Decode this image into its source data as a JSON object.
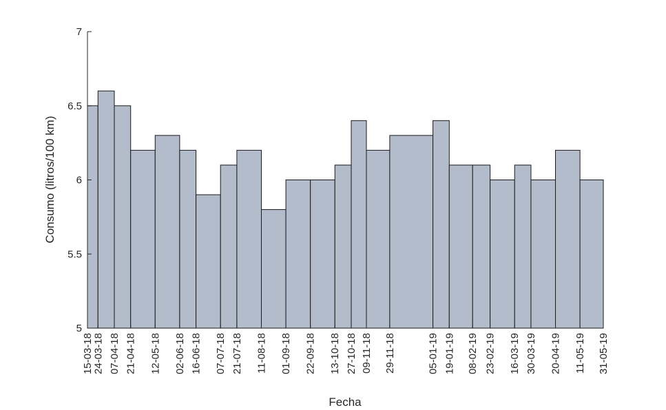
{
  "chart_data": {
    "type": "histogram",
    "xlabel": "Fecha",
    "ylabel": "Consumo (litros/100 km)",
    "bins": [
      "15-03-18",
      "24-03-18",
      "07-04-18",
      "21-04-18",
      "12-05-18",
      "02-06-18",
      "16-06-18",
      "07-07-18",
      "21-07-18",
      "11-08-18",
      "01-09-18",
      "22-09-18",
      "13-10-18",
      "27-10-18",
      "09-11-18",
      "29-11-18",
      "05-01-19",
      "19-01-19",
      "08-02-19",
      "23-02-19",
      "16-03-19",
      "30-03-19",
      "20-04-19",
      "11-05-19",
      "31-05-19"
    ],
    "values": [
      6.5,
      6.6,
      6.5,
      6.2,
      6.3,
      6.2,
      5.9,
      6.1,
      6.2,
      5.8,
      6.0,
      6.0,
      6.1,
      6.4,
      6.2,
      6.3,
      6.4,
      6.1,
      6.1,
      6.0,
      6.1,
      6.0,
      6.2,
      6.0
    ],
    "color": "#b2bccb",
    "ylim": [
      5,
      7
    ],
    "yticks": [
      5,
      5.5,
      6,
      6.5,
      7
    ]
  }
}
